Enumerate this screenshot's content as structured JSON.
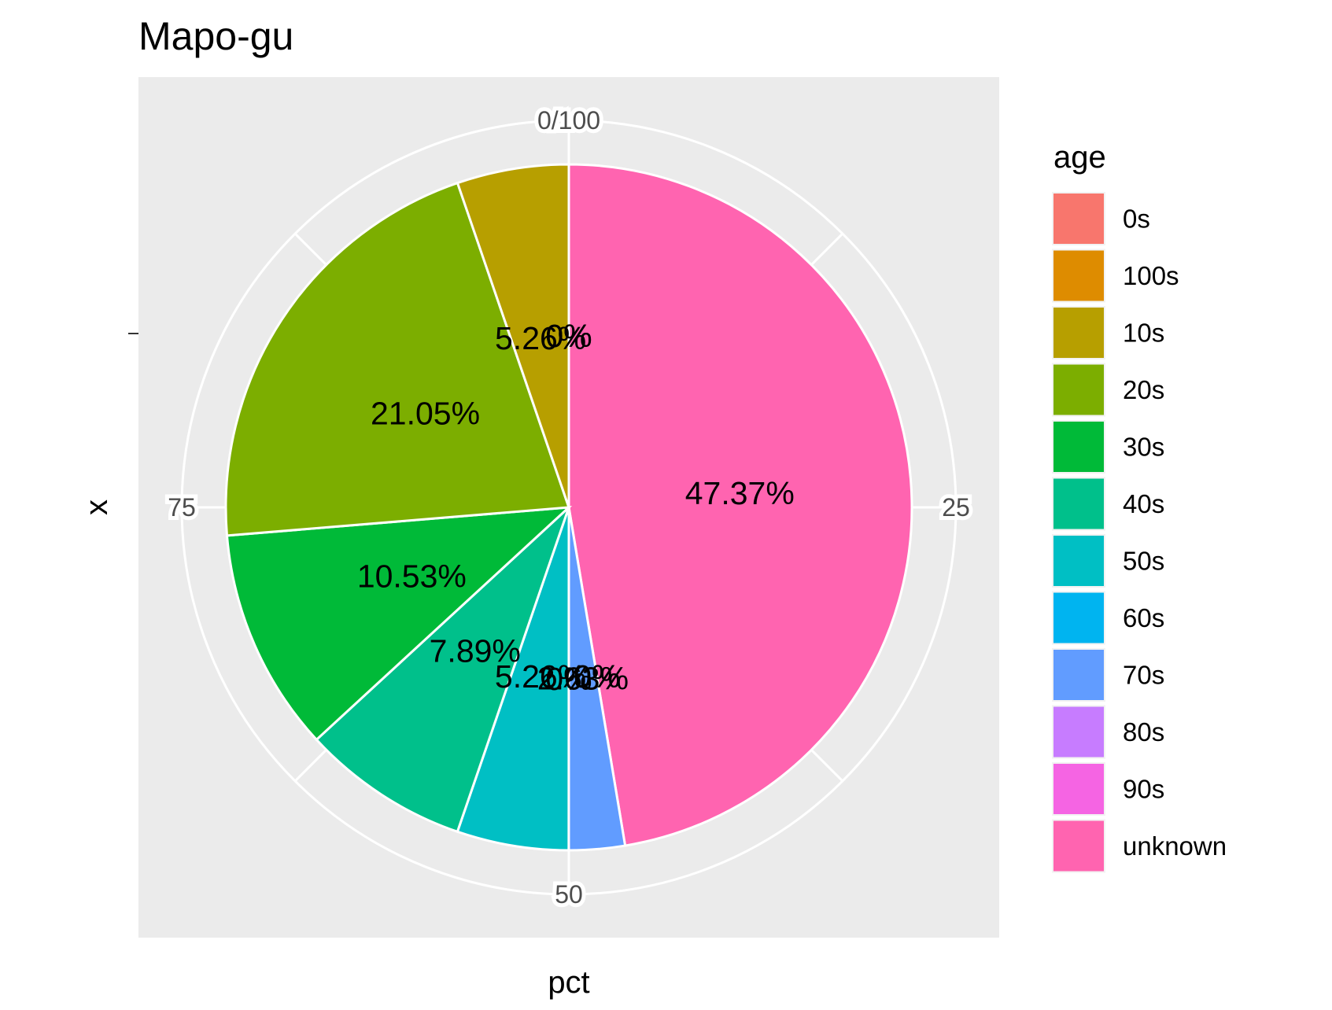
{
  "chart_data": {
    "type": "pie",
    "title": "Mapo-gu",
    "xlabel": "pct",
    "ylabel": "x",
    "angular_ticks": [
      "0/100",
      "25",
      "50",
      "75"
    ],
    "angular_tick_values": [
      0,
      25,
      50,
      75
    ],
    "grid": true,
    "legend": {
      "title": "age",
      "position": "right",
      "entries": [
        {
          "name": "0s",
          "color": "#F8766D"
        },
        {
          "name": "100s",
          "color": "#DE8C00"
        },
        {
          "name": "10s",
          "color": "#B79F00"
        },
        {
          "name": "20s",
          "color": "#7CAE00"
        },
        {
          "name": "30s",
          "color": "#00BA38"
        },
        {
          "name": "40s",
          "color": "#00C08B"
        },
        {
          "name": "50s",
          "color": "#00BFC4"
        },
        {
          "name": "60s",
          "color": "#00B4F0"
        },
        {
          "name": "70s",
          "color": "#619CFF"
        },
        {
          "name": "80s",
          "color": "#C77CFF"
        },
        {
          "name": "90s",
          "color": "#F564E3"
        },
        {
          "name": "unknown",
          "color": "#FF64B0"
        }
      ]
    },
    "slices": [
      {
        "label": "unknown",
        "value": 47.37,
        "text": "47.37%",
        "color": "#FF64B0"
      },
      {
        "label": "90s",
        "value": 0,
        "text": "0%",
        "color": "#F564E3"
      },
      {
        "label": "80s",
        "value": 0,
        "text": "0%",
        "color": "#C77CFF"
      },
      {
        "label": "70s",
        "value": 2.63,
        "text": "2.63%",
        "color": "#619CFF"
      },
      {
        "label": "60s",
        "value": 0,
        "text": "0%",
        "color": "#00B4F0"
      },
      {
        "label": "50s",
        "value": 5.26,
        "text": "5.26%",
        "color": "#00BFC4"
      },
      {
        "label": "40s",
        "value": 7.89,
        "text": "7.89%",
        "color": "#00C08B"
      },
      {
        "label": "30s",
        "value": 10.53,
        "text": "10.53%",
        "color": "#00BA38"
      },
      {
        "label": "20s",
        "value": 21.05,
        "text": "21.05%",
        "color": "#7CAE00"
      },
      {
        "label": "10s",
        "value": 5.26,
        "text": "5.26%",
        "color": "#B79F00"
      },
      {
        "label": "100s",
        "value": 0,
        "text": "0%",
        "color": "#DE8C00"
      },
      {
        "label": "0s",
        "value": 0,
        "text": "0%",
        "color": "#F8766D"
      }
    ]
  }
}
